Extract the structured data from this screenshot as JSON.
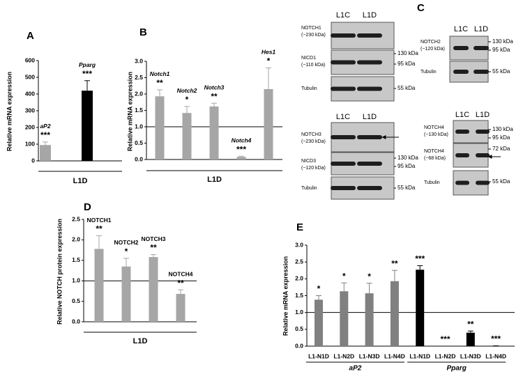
{
  "chart_data": [
    {
      "type": "bar",
      "panel": "A",
      "ylabel": "Relative mRNA expression",
      "xlabel": "L1D",
      "categories": [
        "aP2",
        "Pparg"
      ],
      "values": [
        95,
        420
      ],
      "errors": [
        18,
        60
      ],
      "significance": [
        "***",
        "***"
      ],
      "colors": [
        "#a6a6a6",
        "#000000"
      ],
      "category_labels": "above",
      "italic_labels": true,
      "ylim": [
        0,
        600
      ],
      "yticks": [
        0,
        100,
        200,
        300,
        400,
        500,
        600
      ]
    },
    {
      "type": "bar",
      "panel": "B",
      "ylabel": "Relative mRNA expression",
      "xlabel": "L1D",
      "categories": [
        "Notch1",
        "Notch2",
        "Notch3",
        "Notch4",
        "Hes1"
      ],
      "values": [
        1.93,
        1.42,
        1.62,
        0.08,
        2.15
      ],
      "errors": [
        0.2,
        0.2,
        0.1,
        0.02,
        0.65
      ],
      "significance": [
        "**",
        "*",
        "**",
        "***",
        "*"
      ],
      "colors": [
        "#a6a6a6",
        "#a6a6a6",
        "#a6a6a6",
        "#a6a6a6",
        "#a6a6a6"
      ],
      "category_labels": "above",
      "italic_labels": true,
      "reference_line": 1,
      "ylim": [
        0,
        3
      ],
      "yticks": [
        {
          "value": 0,
          "label": "0.0"
        },
        0.5,
        {
          "value": 1,
          "label": "1.0"
        },
        1.5,
        {
          "value": 2,
          "label": "2.0"
        },
        2.5,
        {
          "value": 3,
          "label": "3.0"
        }
      ]
    },
    {
      "type": "bar",
      "panel": "D",
      "ylabel": "Relative NOTCH protein expression",
      "xlabel": "L1D",
      "categories": [
        "NOTCH1",
        "NOTCH2",
        "NOTCH3",
        "NOTCH4"
      ],
      "values": [
        1.78,
        1.35,
        1.58,
        0.68
      ],
      "errors": [
        0.32,
        0.2,
        0.06,
        0.1
      ],
      "significance": [
        "**",
        "*",
        "**",
        "**"
      ],
      "colors": [
        "#a6a6a6",
        "#a6a6a6",
        "#a6a6a6",
        "#a6a6a6"
      ],
      "category_labels": "above",
      "italic_labels": false,
      "reference_line": 1,
      "ylim": [
        0,
        2.5
      ],
      "yticks": [
        {
          "value": 0,
          "label": "0.0"
        },
        0.5,
        {
          "value": 1,
          "label": "1.0"
        },
        1.5,
        {
          "value": 2,
          "label": "2.0"
        },
        2.5
      ]
    },
    {
      "type": "bar",
      "panel": "E",
      "ylabel": "Relative mRNA expression",
      "categories": [
        "L1-N1D",
        "L1-N2D",
        "L1-N3D",
        "L1-N4D",
        "L1-N1D",
        "L1-N2D",
        "L1-N3D",
        "L1-N4D"
      ],
      "values": [
        1.38,
        1.63,
        1.57,
        1.93,
        2.27,
        0.0,
        0.4,
        0.01
      ],
      "errors": [
        0.12,
        0.25,
        0.3,
        0.32,
        0.12,
        0,
        0.05,
        0
      ],
      "significance": [
        "*",
        "*",
        "*",
        "**",
        "***",
        "***",
        "**",
        "***"
      ],
      "colors": [
        "#808080",
        "#808080",
        "#808080",
        "#808080",
        "#000000",
        "#000000",
        "#000000",
        "#000000"
      ],
      "category_labels": "below",
      "group_labels": [
        "aP2",
        "Pparg"
      ],
      "reference_line": 1,
      "ylim": [
        0,
        3
      ],
      "yticks": [
        {
          "value": 0,
          "label": "0.0"
        },
        0.5,
        {
          "value": 1,
          "label": "1.0"
        },
        1.5,
        {
          "value": 2,
          "label": "2.0"
        },
        2.5,
        {
          "value": 3,
          "label": "3.0"
        }
      ]
    }
  ],
  "blots": {
    "panel": "C",
    "blocks": [
      {
        "lanes": [
          "L1C",
          "L1D"
        ],
        "rows": [
          {
            "name": "NOTCH1",
            "size": "(~230 kDa)"
          },
          {
            "name": "NICD1",
            "size": "(~110 kDa)"
          },
          {
            "name": "Tubulin"
          }
        ],
        "markers": [
          "130 kDa",
          "95 kDa",
          "55 kDa"
        ]
      },
      {
        "lanes": [
          "L1C",
          "L1D"
        ],
        "rows": [
          {
            "name": "NOTCH3",
            "size": "(~230 kDa)"
          },
          {
            "name": "NICD3",
            "size": "(~120 kDa)"
          },
          {
            "name": "Tubulin"
          }
        ],
        "markers": [
          "130 kDa",
          "95 kDa",
          "55 kDa"
        ]
      },
      {
        "lanes": [
          "L1C",
          "L1D"
        ],
        "rows": [
          {
            "name": "NOTCH2",
            "size": "(~120 kDa)"
          },
          {
            "name": "Tubulin"
          }
        ],
        "markers": [
          "130 kDa",
          "95 kDa",
          "55 kDa"
        ]
      },
      {
        "lanes": [
          "L1C",
          "L1D"
        ],
        "rows": [
          {
            "name": "NOTCH4",
            "size": "(~130 kDa)"
          },
          {
            "name": "NOTCH4",
            "size": "(~68 kDa)"
          },
          {
            "name": "Tubulin"
          }
        ],
        "markers": [
          "130 kDa",
          "95 kDa",
          "72 kDa",
          "55 kDa"
        ]
      }
    ]
  }
}
